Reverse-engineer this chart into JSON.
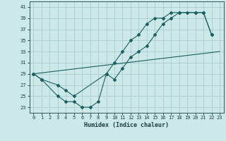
{
  "xlabel": "Humidex (Indice chaleur)",
  "bg_color": "#cce8e8",
  "grid_color": "#aacccc",
  "line_color": "#1a6060",
  "xlim": [
    -0.5,
    23.5
  ],
  "ylim": [
    22.0,
    42.0
  ],
  "yticks": [
    23,
    25,
    27,
    29,
    31,
    33,
    35,
    37,
    39,
    41
  ],
  "xticks": [
    0,
    1,
    2,
    3,
    4,
    5,
    6,
    7,
    8,
    9,
    10,
    11,
    12,
    13,
    14,
    15,
    16,
    17,
    18,
    19,
    20,
    21,
    22,
    23
  ],
  "line1_x": [
    0,
    23
  ],
  "line1_y": [
    29,
    33
  ],
  "line2_x": [
    0,
    1,
    3,
    4,
    5,
    9,
    10,
    11,
    12,
    13,
    14,
    15,
    16,
    17,
    18,
    20,
    21,
    22
  ],
  "line2_y": [
    29,
    28,
    27,
    26,
    25,
    29,
    31,
    33,
    35,
    36,
    38,
    39,
    39,
    40,
    40,
    40,
    40,
    36
  ],
  "line3_x": [
    0,
    1,
    3,
    4,
    5,
    6,
    7,
    8,
    9,
    10,
    11,
    12,
    13,
    14,
    15,
    16,
    17,
    18,
    19,
    20,
    21,
    22
  ],
  "line3_y": [
    29,
    28,
    25,
    24,
    24,
    23,
    23,
    24,
    29,
    28,
    30,
    32,
    33,
    34,
    36,
    38,
    39,
    40,
    40,
    40,
    40,
    36
  ]
}
